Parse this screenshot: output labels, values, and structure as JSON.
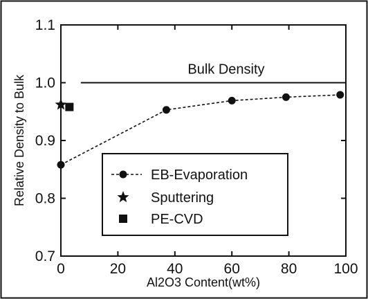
{
  "chart_data": {
    "type": "line",
    "xlabel": "Al2O3 Content(wt%)",
    "ylabel": "Relative Density to Bulk",
    "xlim": [
      0,
      100
    ],
    "ylim": [
      0.7,
      1.1
    ],
    "x_ticks": [
      "0",
      "20",
      "40",
      "60",
      "80",
      "100"
    ],
    "y_ticks": [
      "0.7",
      "0.8",
      "0.9",
      "1.0",
      "1.1"
    ],
    "reference_line": {
      "label": "Bulk Density",
      "y": 1.0,
      "x_start": 7,
      "x_end": 100
    },
    "series": [
      {
        "name": "EB-Evaporation",
        "marker": "circle",
        "line": "dashed",
        "x": [
          0,
          37,
          60,
          79,
          98
        ],
        "y": [
          0.858,
          0.953,
          0.969,
          0.975,
          0.979
        ]
      },
      {
        "name": "Sputtering",
        "marker": "star",
        "x": [
          0
        ],
        "y": [
          0.962
        ]
      },
      {
        "name": "PE-CVD",
        "marker": "square",
        "x": [
          3
        ],
        "y": [
          0.958
        ]
      }
    ],
    "legend": {
      "position": "center-right",
      "entries": [
        "EB-Evaporation",
        "Sputtering",
        "PE-CVD"
      ]
    },
    "grid": false
  }
}
